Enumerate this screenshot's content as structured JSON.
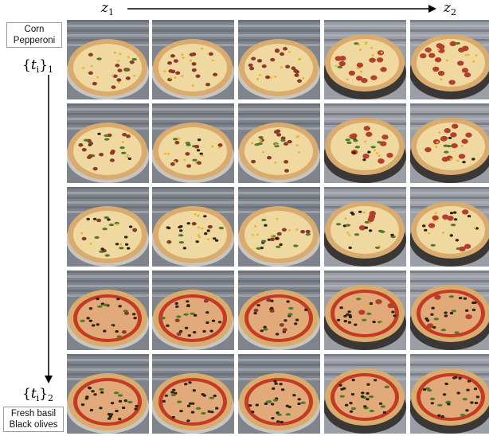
{
  "z_start": {
    "symbol": "z",
    "index": "1"
  },
  "z_end": {
    "symbol": "z",
    "index": "2"
  },
  "t_start": {
    "symbol": "t",
    "sub": "i",
    "index": "1"
  },
  "t_end": {
    "symbol": "t",
    "sub": "i",
    "index": "2"
  },
  "prompt_top": {
    "line1": "Corn",
    "line2": "Pepperoni"
  },
  "prompt_bottom": {
    "line1": "Fresh basil",
    "line2": "Black olives"
  },
  "grid": {
    "rows": 5,
    "cols": 5
  },
  "colors": {
    "crust": "#d9ab6f",
    "cheese": "#f0d9a0",
    "sauce": "#c43a22",
    "pepperoni": "#b3402c",
    "corn": "#e7b52a",
    "olive": "#2b2418",
    "basil": "#4d7a2c",
    "bg": "#8b8f98"
  }
}
